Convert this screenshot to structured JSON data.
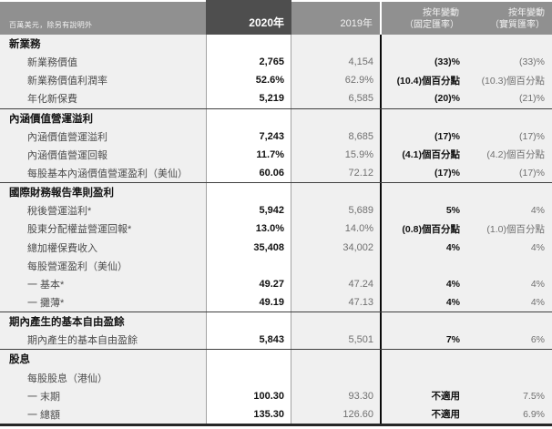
{
  "meta": {
    "units_note": "百萬美元，除另有說明外"
  },
  "colors": {
    "header_gray": "#909090",
    "highlight_column_dark": "#4e4e4e",
    "body_background": "#f0f0f0",
    "highlight_body_white": "#ffffff",
    "secondary_text_gray": "#707070",
    "divider_black": "#0a0a0a"
  },
  "header": {
    "col_2020": "2020年",
    "col_2019": "2019年",
    "chg_fixed_line1": "按年變動",
    "chg_fixed_line2": "（固定匯率）",
    "chg_actual_line1": "按年變動",
    "chg_actual_line2": "（實質匯率）"
  },
  "rows": [
    {
      "type": "section",
      "label": "新業務"
    },
    {
      "type": "data",
      "label": "新業務價值",
      "v2020": "2,765",
      "v2019": "4,154",
      "chg_fixed": "(33)%",
      "chg_actual": "(33)%"
    },
    {
      "type": "data",
      "label": "新業務價值利潤率",
      "v2020": "52.6%",
      "v2019": "62.9%",
      "chg_fixed": "(10.4)個百分點",
      "chg_actual": "(10.3)個百分點"
    },
    {
      "type": "data",
      "label": "年化新保費",
      "v2020": "5,219",
      "v2019": "6,585",
      "chg_fixed": "(20)%",
      "chg_actual": "(21)%"
    },
    {
      "type": "section",
      "label": "內涵價值營運溢利"
    },
    {
      "type": "data",
      "label": "內涵價值營運溢利",
      "v2020": "7,243",
      "v2019": "8,685",
      "chg_fixed": "(17)%",
      "chg_actual": "(17)%"
    },
    {
      "type": "data",
      "label": "內涵價值營運回報",
      "v2020": "11.7%",
      "v2019": "15.9%",
      "chg_fixed": "(4.1)個百分點",
      "chg_actual": "(4.2)個百分點"
    },
    {
      "type": "data",
      "label": "每股基本內涵價值營運盈利（美仙）",
      "v2020": "60.06",
      "v2019": "72.12",
      "chg_fixed": "(17)%",
      "chg_actual": "(17)%"
    },
    {
      "type": "section",
      "label": "國際財務報告準則盈利"
    },
    {
      "type": "data",
      "label": "稅後營運溢利*",
      "v2020": "5,942",
      "v2019": "5,689",
      "chg_fixed": "5%",
      "chg_actual": "4%"
    },
    {
      "type": "data",
      "label": "股東分配權益營運回報*",
      "v2020": "13.0%",
      "v2019": "14.0%",
      "chg_fixed": "(0.8)個百分點",
      "chg_actual": "(1.0)個百分點"
    },
    {
      "type": "data",
      "label": "總加權保費收入",
      "v2020": "35,408",
      "v2019": "34,002",
      "chg_fixed": "4%",
      "chg_actual": "4%"
    },
    {
      "type": "data",
      "label": "每股營運盈利（美仙）",
      "v2020": "",
      "v2019": "",
      "chg_fixed": "",
      "chg_actual": ""
    },
    {
      "type": "data",
      "label": "一 基本*",
      "v2020": "49.27",
      "v2019": "47.24",
      "chg_fixed": "4%",
      "chg_actual": "4%"
    },
    {
      "type": "data",
      "label": "一 攤薄*",
      "v2020": "49.19",
      "v2019": "47.13",
      "chg_fixed": "4%",
      "chg_actual": "4%"
    },
    {
      "type": "section",
      "label": "期內產生的基本自由盈餘"
    },
    {
      "type": "data",
      "label": "期內產生的基本自由盈餘",
      "v2020": "5,843",
      "v2019": "5,501",
      "chg_fixed": "7%",
      "chg_actual": "6%"
    },
    {
      "type": "section",
      "label": "股息"
    },
    {
      "type": "data",
      "label": "每股股息（港仙）",
      "v2020": "",
      "v2019": "",
      "chg_fixed": "",
      "chg_actual": ""
    },
    {
      "type": "data",
      "label": "一 末期",
      "v2020": "100.30",
      "v2019": "93.30",
      "chg_fixed": "不適用",
      "chg_actual": "7.5%"
    },
    {
      "type": "data",
      "label": "一 總額",
      "v2020": "135.30",
      "v2019": "126.60",
      "chg_fixed": "不適用",
      "chg_actual": "6.9%"
    }
  ]
}
